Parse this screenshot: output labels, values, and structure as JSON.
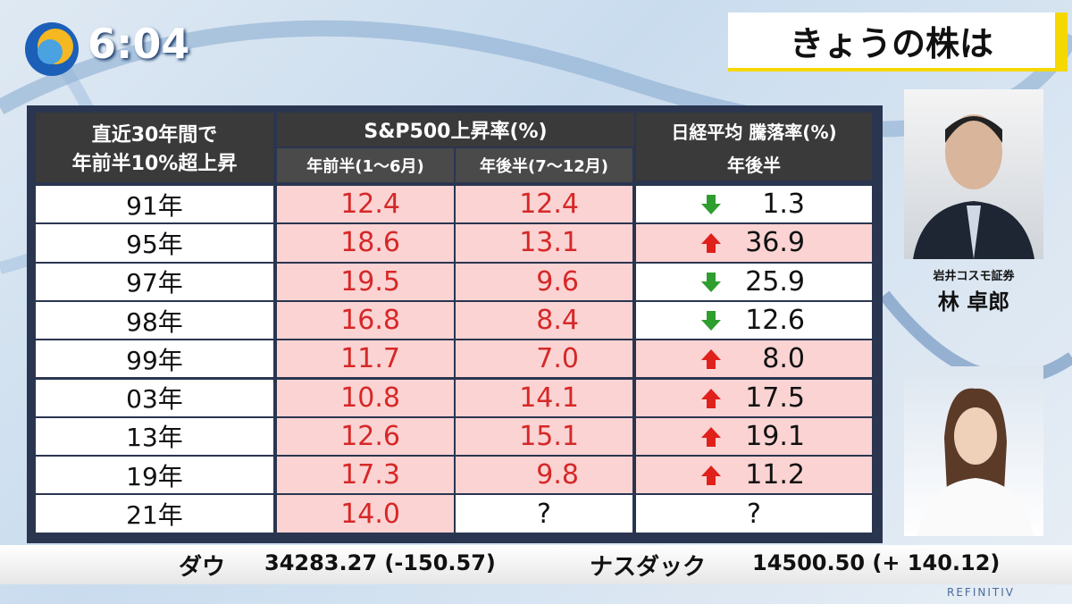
{
  "clock": "6:04",
  "banner": "きょうの株は",
  "table": {
    "header": {
      "label": [
        "直近30年間で",
        "年前半10%超上昇"
      ],
      "sp500": "S&P500上昇率(%)",
      "sp500_h1": "年前半(1～6月)",
      "sp500_h2": "年後半(7～12月)",
      "nikkei": "日経平均 騰落率(%)",
      "nikkei_sub": "年後半"
    },
    "rows": [
      {
        "year": "91年",
        "h1": "12.4",
        "h2": "12.4",
        "nikkei": "1.3",
        "dir": "down"
      },
      {
        "year": "95年",
        "h1": "18.6",
        "h2": "13.1",
        "nikkei": "36.9",
        "dir": "up"
      },
      {
        "year": "97年",
        "h1": "19.5",
        "h2": "9.6",
        "nikkei": "25.9",
        "dir": "down"
      },
      {
        "year": "98年",
        "h1": "16.8",
        "h2": "8.4",
        "nikkei": "12.6",
        "dir": "down"
      },
      {
        "year": "99年",
        "h1": "11.7",
        "h2": "7.0",
        "nikkei": "8.0",
        "dir": "up"
      },
      {
        "year": "03年",
        "h1": "10.8",
        "h2": "14.1",
        "nikkei": "17.5",
        "dir": "up"
      },
      {
        "year": "13年",
        "h1": "12.6",
        "h2": "15.1",
        "nikkei": "19.1",
        "dir": "up"
      },
      {
        "year": "19年",
        "h1": "17.3",
        "h2": "9.8",
        "nikkei": "11.2",
        "dir": "up"
      },
      {
        "year": "21年",
        "h1": "14.0",
        "h2": "?",
        "nikkei": "?"
      }
    ]
  },
  "guest": {
    "company": "岩井コスモ証券",
    "name": "林 卓郎"
  },
  "ticker": {
    "dow_label": "ダウ",
    "dow": "34283.27 (-150.57)",
    "nasdaq_label": "ナスダック",
    "nasdaq": "14500.50 (+ 140.12)"
  },
  "logo": "REFINITIV"
}
